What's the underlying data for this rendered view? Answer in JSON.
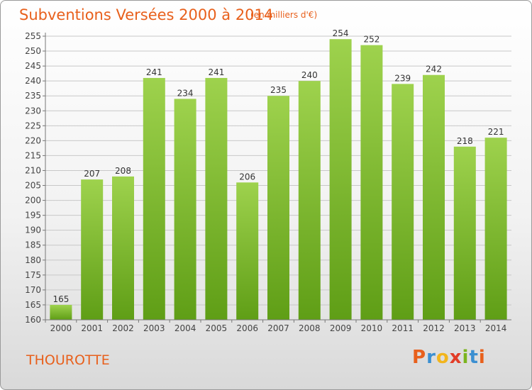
{
  "header": {
    "title": "Subventions Versées 2000 à 2014",
    "unit_note": "(en milliers d'€)"
  },
  "footer": {
    "commune": "THOUROTTE",
    "logo_letters": [
      "P",
      "r",
      "o",
      "x",
      "i",
      "t",
      "i"
    ],
    "logo_colors": [
      "#e8601c",
      "#3b8fd1",
      "#f2b51d",
      "#e23d28",
      "#7bb41e",
      "#3b8fd1",
      "#e8601c"
    ]
  },
  "colors": {
    "title": "#e8601c",
    "bar_top": "#9ed24d",
    "bar_bottom": "#5f9e16",
    "grid": "#c8c8c8"
  },
  "chart_data": {
    "type": "bar",
    "title": "Subventions Versées 2000 à 2014",
    "subtitle": "(en milliers d'€)",
    "xlabel": "",
    "ylabel": "",
    "categories": [
      "2000",
      "2001",
      "2002",
      "2003",
      "2004",
      "2005",
      "2006",
      "2007",
      "2008",
      "2009",
      "2010",
      "2011",
      "2012",
      "2013",
      "2014"
    ],
    "values": [
      165,
      207,
      208,
      241,
      234,
      241,
      206,
      235,
      240,
      254,
      252,
      239,
      242,
      218,
      221
    ],
    "ylim": [
      160,
      255
    ],
    "yticks": [
      160,
      165,
      170,
      175,
      180,
      185,
      190,
      195,
      200,
      205,
      210,
      215,
      220,
      225,
      230,
      235,
      240,
      245,
      250,
      255
    ],
    "grid": true,
    "legend": "none"
  }
}
